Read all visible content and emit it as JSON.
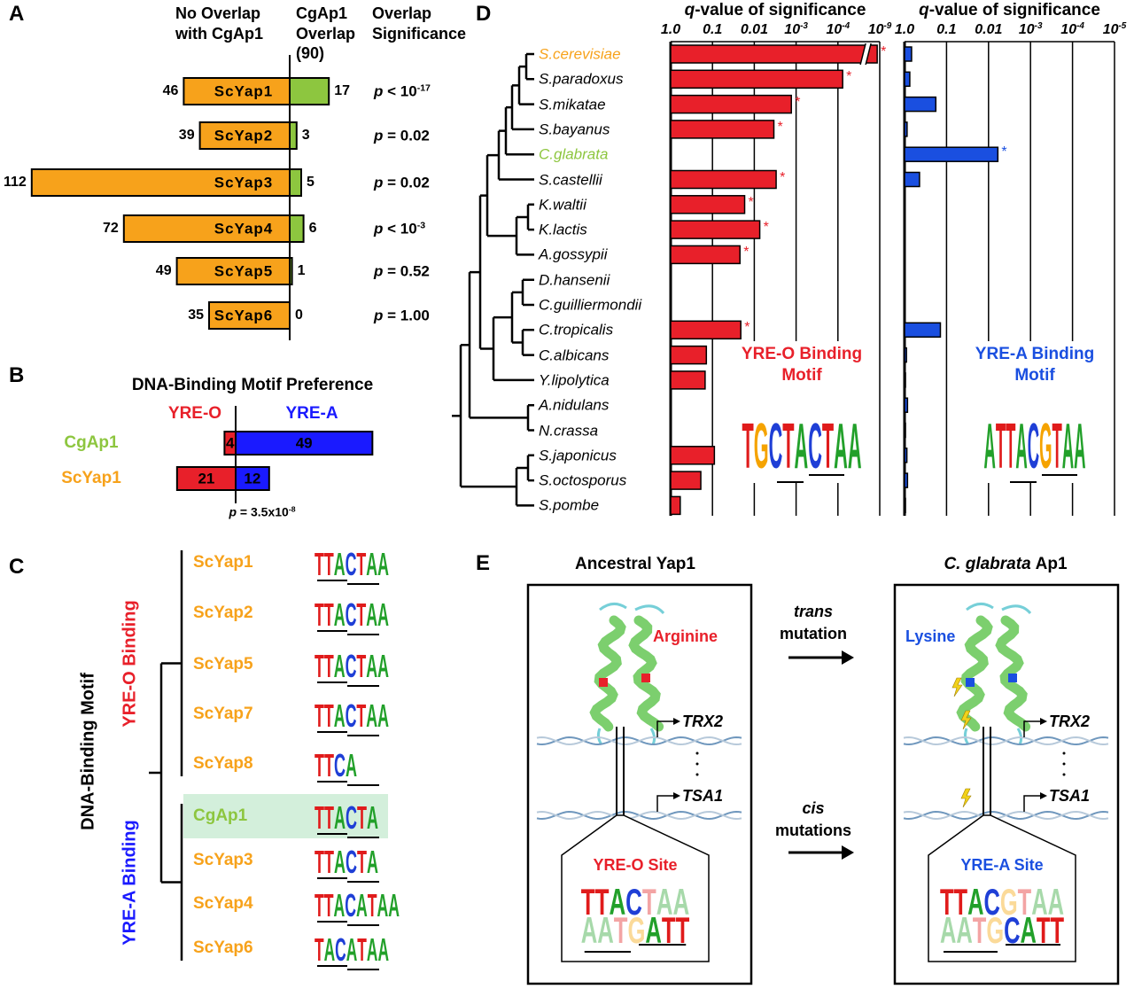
{
  "panel_labels": [
    "A",
    "B",
    "C",
    "D",
    "E"
  ],
  "chart_data": [
    {
      "type": "diverging_bar",
      "categories": [
        "ScYap1",
        "ScYap2",
        "ScYap3",
        "ScYap4",
        "ScYap5",
        "ScYap6"
      ],
      "series": [
        {
          "name": "No Overlap with CgAp1",
          "color": "#f7a21b",
          "values": [
            46,
            39,
            112,
            72,
            49,
            35
          ]
        },
        {
          "name": "CgAp1 Overlap (90)",
          "color": "#8dc63f",
          "values": [
            17,
            3,
            5,
            6,
            1,
            0
          ]
        }
      ],
      "significance_title": "Overlap Significance",
      "significance": [
        {
          "text": "p < 10",
          "sup": "-17"
        },
        {
          "text": "p = 0.02"
        },
        {
          "text": "p = 0.02"
        },
        {
          "text": "p < 10",
          "sup": "-3"
        },
        {
          "text": "p = 0.52"
        },
        {
          "text": "p = 1.00"
        }
      ]
    },
    {
      "type": "diverging_stacked_bar",
      "title": "DNA-Binding Motif Preference",
      "categories": [
        "CgAp1",
        "ScYap1"
      ],
      "category_colors": [
        "#8dc63f",
        "#f7a21b"
      ],
      "series": [
        {
          "name": "YRE-O",
          "color": "#e8202a",
          "values": [
            4,
            21
          ]
        },
        {
          "name": "YRE-A",
          "color": "#1a1aff",
          "values": [
            49,
            12
          ]
        }
      ],
      "annotation": {
        "text": "p = 3.5x10",
        "sup": "-8"
      }
    },
    {
      "type": "bar",
      "orientation": "horizontal",
      "log_scale": true,
      "grid": true,
      "axis_break": true,
      "xlabel": "q-value of significance",
      "categories": [
        "S.cerevisiae",
        "S.paradoxus",
        "S.mikatae",
        "S.bayanus",
        "C.glabrata",
        "S.castellii",
        "K.waltii",
        "K.lactis",
        "A.gossypii",
        "D.hansenii",
        "C.guilliermondii",
        "C.tropicalis",
        "C.albicans",
        "Y.lipolytica",
        "A.nidulans",
        "N.crassa",
        "S.japonicus",
        "S.octosporus",
        "S.pombe"
      ],
      "category_colors": [
        "#f7a21b",
        "#000000",
        "#000000",
        "#000000",
        "#8dc63f",
        "#000000",
        "#000000",
        "#000000",
        "#000000",
        "#000000",
        "#000000",
        "#000000",
        "#000000",
        "#000000",
        "#000000",
        "#000000",
        "#000000",
        "#000000",
        "#000000"
      ],
      "color": "#e8202a",
      "values": [
        2e-09,
        2.7e-05,
        0.0013,
        0.0034,
        1,
        0.003,
        0.017,
        0.0074,
        0.022,
        1,
        1,
        0.021,
        0.14,
        0.15,
        1,
        1,
        0.09,
        0.19,
        0.59
      ],
      "markers": [
        "*",
        "*",
        "*",
        "*",
        null,
        "*",
        "*",
        "*",
        "*",
        null,
        null,
        "*",
        null,
        null,
        null,
        null,
        null,
        null,
        null
      ],
      "xlim": [
        1,
        1e-09
      ],
      "xticks": [
        {
          "value": 1,
          "label": "1.0"
        },
        0.1,
        0.01,
        {
          "value": 0.001,
          "label": "10",
          "sup": "-3"
        },
        {
          "value": 0.0001,
          "label": "10",
          "sup": "-4"
        },
        {
          "value": 1e-09,
          "label": "10",
          "sup": "-9"
        }
      ],
      "inset": {
        "title": "YRE-O Binding Motif",
        "logo": "TGCTACTAA"
      }
    },
    {
      "type": "bar",
      "orientation": "horizontal",
      "log_scale": true,
      "grid": true,
      "xlabel": "q-value of significance",
      "color": "#1a4fe0",
      "values": [
        0.68,
        0.75,
        0.18,
        0.87,
        0.006,
        0.44,
        1,
        1,
        1,
        1,
        1,
        0.14,
        0.9,
        0.95,
        0.85,
        0.95,
        0.88,
        0.85,
        0.95
      ],
      "markers": [
        null,
        null,
        null,
        null,
        "*",
        null,
        null,
        null,
        null,
        null,
        null,
        null,
        null,
        null,
        null,
        null,
        null,
        null,
        null
      ],
      "xlim": [
        1,
        1e-05
      ],
      "xticks": [
        {
          "value": 1,
          "label": "1.0"
        },
        0.1,
        0.01,
        {
          "value": 0.001,
          "label": "10",
          "sup": "-3"
        },
        {
          "value": 0.0001,
          "label": "10",
          "sup": "-4"
        },
        {
          "value": 1e-05,
          "label": "10",
          "sup": "-5"
        }
      ],
      "inset": {
        "title": "YRE-A Binding Motif",
        "logo": "ATTACGTAA"
      }
    }
  ],
  "panel_c": {
    "axis_label": "DNA-Binding Motif",
    "groups": [
      {
        "name": "YRE-O Binding",
        "color": "#e8202a",
        "members": [
          {
            "name": "ScYap1",
            "color": "#f7a21b",
            "logo": "TTACTAA"
          },
          {
            "name": "ScYap2",
            "color": "#f7a21b",
            "logo": "TTACTAA"
          },
          {
            "name": "ScYap5",
            "color": "#f7a21b",
            "logo": "TTACTAA"
          },
          {
            "name": "ScYap7",
            "color": "#f7a21b",
            "logo": "TTACTAA"
          },
          {
            "name": "ScYap8",
            "color": "#f7a21b",
            "logo": "TTCA"
          }
        ]
      },
      {
        "name": "YRE-A Binding",
        "color": "#1a1aff",
        "members": [
          {
            "name": "CgAp1",
            "color": "#8dc63f",
            "logo": "TTACTA"
          },
          {
            "name": "ScYap3",
            "color": "#f7a21b",
            "logo": "TTACTA"
          },
          {
            "name": "ScYap4",
            "color": "#f7a21b",
            "logo": "TTACATAA"
          },
          {
            "name": "ScYap6",
            "color": "#f7a21b",
            "logo": "TACATAA"
          }
        ]
      }
    ]
  },
  "panel_e": {
    "left_title": "Ancestral Yap1",
    "right_title": {
      "italic": "C. glabrata",
      "text": "Ap1"
    },
    "left_residue": "Arginine",
    "right_residue": "Lysine",
    "trans": {
      "italic": "trans",
      "text": "mutation"
    },
    "cis": {
      "italic": "cis",
      "text": "mutations"
    },
    "genes": [
      "TRX2",
      "TSA1"
    ],
    "left_site": {
      "name": "YRE-O Site",
      "top": "TTACTAA",
      "bottom": "AATGATT"
    },
    "right_site": {
      "name": "YRE-A Site",
      "top": "TTACGTAA",
      "bottom": "AATGCATT"
    }
  }
}
